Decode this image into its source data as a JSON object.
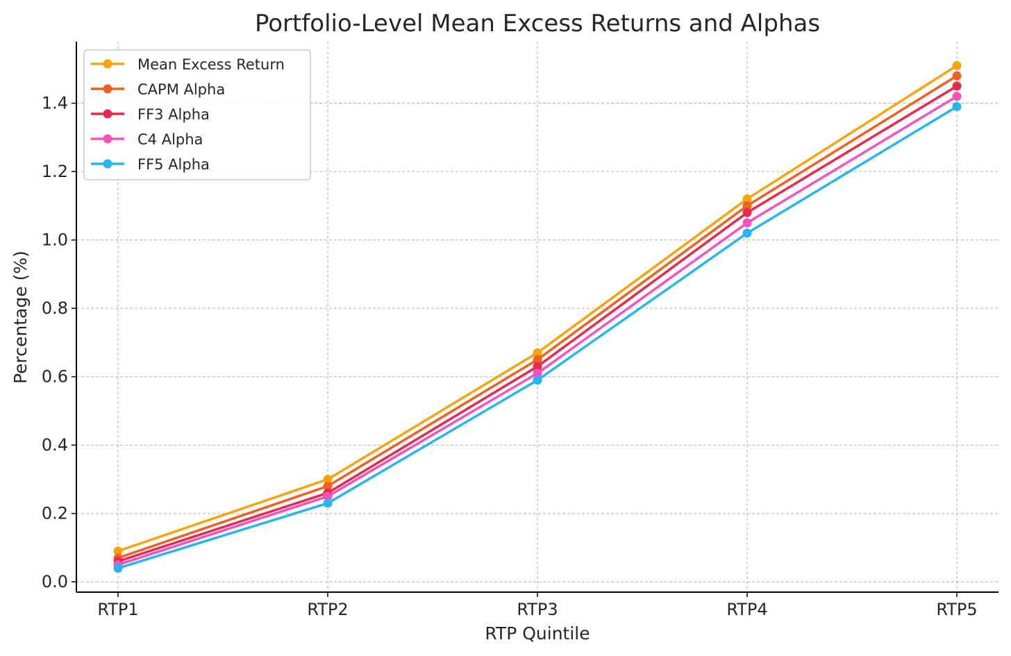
{
  "chart_data": {
    "type": "line",
    "title": "Portfolio-Level Mean Excess Returns and Alphas",
    "xlabel": "RTP Quintile",
    "ylabel": "Percentage (%)",
    "categories": [
      "RTP1",
      "RTP2",
      "RTP3",
      "RTP4",
      "RTP5"
    ],
    "ylim": [
      -0.03,
      1.58
    ],
    "yticks": [
      0.0,
      0.2,
      0.4,
      0.6,
      0.8,
      1.0,
      1.2,
      1.4
    ],
    "ytick_labels": [
      "0.0",
      "0.2",
      "0.4",
      "0.6",
      "0.8",
      "1.0",
      "1.2",
      "1.4"
    ],
    "grid": true,
    "legend_position": "upper-left",
    "series": [
      {
        "name": "Mean Excess Return",
        "color": "#F7A40B",
        "values": [
          0.09,
          0.3,
          0.67,
          1.12,
          1.51
        ]
      },
      {
        "name": "CAPM Alpha",
        "color": "#EE6123",
        "values": [
          0.07,
          0.28,
          0.65,
          1.1,
          1.48
        ]
      },
      {
        "name": "FF3 Alpha",
        "color": "#E8294D",
        "values": [
          0.06,
          0.26,
          0.63,
          1.08,
          1.45
        ]
      },
      {
        "name": "C4 Alpha",
        "color": "#F552BE",
        "values": [
          0.05,
          0.25,
          0.61,
          1.05,
          1.42
        ]
      },
      {
        "name": "FF5 Alpha",
        "color": "#27B5EE",
        "values": [
          0.04,
          0.23,
          0.59,
          1.02,
          1.39
        ]
      }
    ]
  }
}
